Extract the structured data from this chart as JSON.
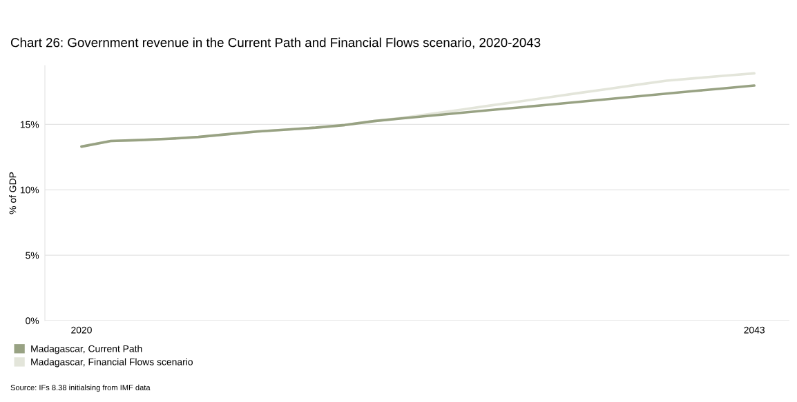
{
  "chart_data": {
    "type": "line",
    "title": "Chart 26: Government revenue in the Current Path and Financial Flows scenario, 2020-2043",
    "ylabel": "% of GDP",
    "x": [
      2020,
      2021,
      2022,
      2023,
      2024,
      2025,
      2026,
      2027,
      2028,
      2029,
      2030,
      2031,
      2032,
      2033,
      2034,
      2035,
      2036,
      2037,
      2038,
      2039,
      2040,
      2041,
      2042,
      2043
    ],
    "series": [
      {
        "name": "Madagascar, Financial Flows scenario",
        "color": "#e3e5da",
        "values": [
          13.3,
          13.73,
          13.8,
          13.9,
          14.04,
          14.25,
          14.45,
          14.6,
          14.75,
          14.95,
          15.25,
          15.5,
          15.82,
          16.13,
          16.45,
          16.76,
          17.08,
          17.4,
          17.71,
          18.03,
          18.34,
          18.53,
          18.72,
          18.9
        ]
      },
      {
        "name": "Madagascar, Current Path",
        "color": "#98a283",
        "values": [
          13.3,
          13.73,
          13.8,
          13.9,
          14.04,
          14.25,
          14.45,
          14.6,
          14.75,
          14.95,
          15.25,
          15.47,
          15.68,
          15.89,
          16.1,
          16.3,
          16.51,
          16.72,
          16.93,
          17.14,
          17.35,
          17.56,
          17.76,
          17.97
        ]
      }
    ],
    "xlim": [
      2018.75,
      2044.2
    ],
    "xticks": [
      2020,
      2043
    ],
    "ylim": [
      0,
      19.5
    ],
    "yticks": [
      {
        "value": 0,
        "label": "0%"
      },
      {
        "value": 5,
        "label": "5%"
      },
      {
        "value": 10,
        "label": "10%"
      },
      {
        "value": 15,
        "label": "15%"
      }
    ],
    "grid": "y",
    "legend": "bottom left",
    "marker": "none",
    "line_style": "solid",
    "annotations": [
      "Source: IFs 8.38 initialsing from IMF data"
    ]
  }
}
